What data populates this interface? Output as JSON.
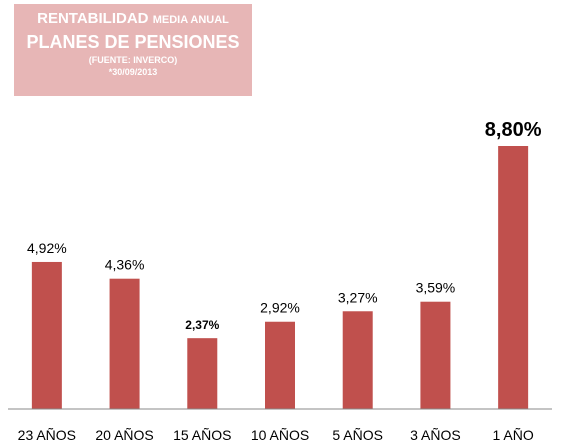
{
  "title": {
    "line1_main": "RENTABILIDAD",
    "line1_rest": "MEDIA ANUAL",
    "line2": "PLANES DE PENSIONES",
    "line3": "(FUENTE: INVERCO)",
    "line4": "*30/09/2013"
  },
  "chart_data": {
    "type": "bar",
    "categories": [
      "23 AÑOS",
      "20 AÑOS",
      "15 AÑOS",
      "10 AÑOS",
      "5 AÑOS",
      "3 AÑOS",
      "1 AÑO"
    ],
    "values": [
      4.92,
      4.36,
      2.37,
      2.92,
      3.27,
      3.59,
      8.8
    ],
    "data_labels": [
      "4,92%",
      "4,36%",
      "2,37%",
      "2,92%",
      "3,27%",
      "3,59%",
      "8,80%"
    ],
    "ylim": [
      0,
      8.8
    ],
    "grid": false,
    "bar_color": "#c0504d",
    "axis_color": "#888888"
  }
}
